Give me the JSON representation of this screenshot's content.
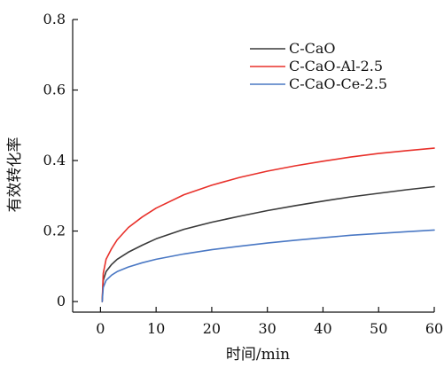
{
  "chart_data": {
    "type": "line",
    "xlabel": "时间/min",
    "ylabel": "有效转化率",
    "xlim": [
      -5,
      60
    ],
    "ylim": [
      -0.03,
      0.8
    ],
    "xticks": [
      0,
      10,
      20,
      30,
      40,
      50,
      60
    ],
    "xtick_labels": [
      "0",
      "10",
      "20",
      "30",
      "40",
      "50",
      "60"
    ],
    "yticks": [
      0,
      0.2,
      0.4,
      0.6,
      0.8
    ],
    "ytick_labels": [
      "0",
      "0.2",
      "0.4",
      "0.6",
      "0.8"
    ],
    "grid": false,
    "legend_position": "top-right",
    "series": [
      {
        "name": "C-CaO",
        "color": "#3a3a3a",
        "x": [
          0.3,
          0.5,
          1,
          2,
          3,
          5,
          7.5,
          10,
          15,
          20,
          25,
          30,
          35,
          40,
          45,
          50,
          55,
          60
        ],
        "y": [
          0,
          0.06,
          0.085,
          0.105,
          0.12,
          0.14,
          0.16,
          0.178,
          0.205,
          0.225,
          0.242,
          0.258,
          0.272,
          0.285,
          0.297,
          0.307,
          0.317,
          0.326
        ]
      },
      {
        "name": "C-CaO-Al-2.5",
        "color": "#e8302a",
        "x": [
          0.3,
          0.5,
          1,
          2,
          3,
          5,
          7.5,
          10,
          15,
          20,
          25,
          30,
          35,
          40,
          45,
          50,
          55,
          60
        ],
        "y": [
          0,
          0.08,
          0.12,
          0.15,
          0.175,
          0.21,
          0.24,
          0.265,
          0.303,
          0.33,
          0.352,
          0.37,
          0.385,
          0.398,
          0.41,
          0.42,
          0.428,
          0.435
        ]
      },
      {
        "name": "C-CaO-Ce-2.5",
        "color": "#4a78c4",
        "x": [
          0.3,
          0.5,
          1,
          2,
          3,
          5,
          7.5,
          10,
          15,
          20,
          25,
          30,
          35,
          40,
          45,
          50,
          55,
          60
        ],
        "y": [
          0,
          0.04,
          0.06,
          0.075,
          0.085,
          0.098,
          0.11,
          0.12,
          0.135,
          0.147,
          0.157,
          0.166,
          0.174,
          0.181,
          0.188,
          0.193,
          0.198,
          0.203
        ]
      }
    ]
  }
}
